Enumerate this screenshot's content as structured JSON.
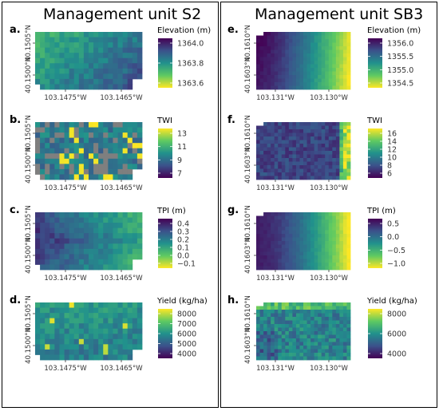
{
  "colormap": [
    "#440154",
    "#3b528b",
    "#21918c",
    "#5ec962",
    "#fde725"
  ],
  "na_color": "#7f7f7f",
  "units": [
    {
      "title": "Management unit S2",
      "x_ticks": [
        "103.1475°W",
        "103.1465°W"
      ],
      "y_ticks": [
        "40.1505°N",
        "40.1500°N"
      ],
      "panels": [
        {
          "letter": "a.",
          "variable": "Elevation (m)",
          "legend_ticks": [
            "1364.0",
            "1363.8",
            "1363.6"
          ],
          "reversed": true,
          "chart_data": {
            "type": "heatmap",
            "value_range": [
              1363.5,
              1364.1
            ],
            "pattern": "elevation-s2"
          }
        },
        {
          "letter": "b.",
          "variable": "TWI",
          "legend_ticks": [
            "13",
            "11",
            "9",
            "7"
          ],
          "reversed": false,
          "chart_data": {
            "type": "heatmap",
            "value_range": [
              6,
              14
            ],
            "pattern": "twi-s2",
            "has_missing_cells": true
          }
        },
        {
          "letter": "c.",
          "variable": "TPI (m)",
          "legend_ticks": [
            "0.4",
            "0.3",
            "0.2",
            "0.1",
            "0.0",
            "−0.1"
          ],
          "reversed": true,
          "chart_data": {
            "type": "heatmap",
            "value_range": [
              -0.15,
              0.5
            ],
            "pattern": "tpi-s2"
          }
        },
        {
          "letter": "d.",
          "variable": "Yield (kg/ha)",
          "legend_ticks": [
            "8000",
            "7000",
            "6000",
            "5000",
            "4000"
          ],
          "reversed": false,
          "chart_data": {
            "type": "heatmap",
            "value_range": [
              3500,
              8500
            ],
            "pattern": "yield-s2"
          }
        }
      ]
    },
    {
      "title": "Management unit SB3",
      "x_ticks": [
        "103.131°W",
        "103.130°W"
      ],
      "y_ticks": [
        "40.1610°N",
        "40.1603°N"
      ],
      "panels": [
        {
          "letter": "e.",
          "variable": "Elevation (m)",
          "legend_ticks": [
            "1356.0",
            "1355.5",
            "1355.0",
            "1354.5"
          ],
          "reversed": true,
          "chart_data": {
            "type": "heatmap",
            "value_range": [
              1354.2,
              1356.3
            ],
            "pattern": "elevation-sb3"
          }
        },
        {
          "letter": "f.",
          "variable": "TWI",
          "legend_ticks": [
            "16",
            "14",
            "12",
            "10",
            "8",
            "6"
          ],
          "reversed": false,
          "chart_data": {
            "type": "heatmap",
            "value_range": [
              5.5,
              17
            ],
            "pattern": "twi-sb3"
          }
        },
        {
          "letter": "g.",
          "variable": "TPI (m)",
          "legend_ticks": [
            "0.5",
            "0.0",
            "−0.5",
            "−1.0"
          ],
          "reversed": true,
          "chart_data": {
            "type": "heatmap",
            "value_range": [
              -1.3,
              0.8
            ],
            "pattern": "tpi-sb3"
          }
        },
        {
          "letter": "h.",
          "variable": "Yield (kg/ha)",
          "legend_ticks": [
            "8000",
            "6000",
            "4000"
          ],
          "reversed": false,
          "chart_data": {
            "type": "heatmap",
            "value_range": [
              2800,
              9500
            ],
            "pattern": "yield-sb3"
          }
        }
      ]
    }
  ]
}
